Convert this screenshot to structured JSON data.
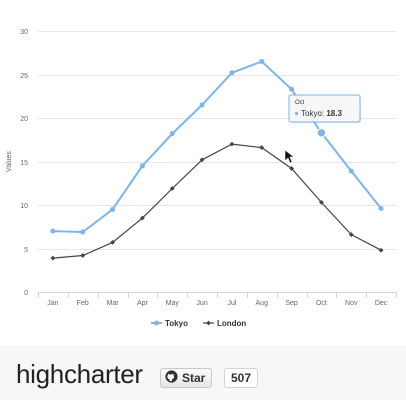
{
  "chart_data": {
    "type": "line",
    "categories": [
      "Jan",
      "Feb",
      "Mar",
      "Apr",
      "May",
      "Jun",
      "Jul",
      "Aug",
      "Sep",
      "Oct",
      "Nov",
      "Dec"
    ],
    "series": [
      {
        "name": "Tokyo",
        "color": "#7cb5ec",
        "marker": "circle",
        "values": [
          7.0,
          6.9,
          9.5,
          14.5,
          18.2,
          21.5,
          25.2,
          26.5,
          23.3,
          18.3,
          13.9,
          9.6
        ]
      },
      {
        "name": "London",
        "color": "#434348",
        "marker": "diamond",
        "values": [
          3.9,
          4.2,
          5.7,
          8.5,
          11.9,
          15.2,
          17.0,
          16.6,
          14.2,
          10.3,
          6.6,
          4.8
        ]
      }
    ],
    "ylabel": "Values",
    "ylim": [
      0,
      30
    ],
    "yticks": [
      0,
      5,
      10,
      15,
      20,
      25,
      30
    ],
    "grid": true,
    "legend": "bottom-center",
    "tooltip": {
      "header": "Oct",
      "series": "Tokyo",
      "value": "18.3",
      "point_index": 9
    }
  },
  "footer": {
    "brand": "highcharter",
    "star_label": "Star",
    "star_count": "507",
    "star_icon": "github-octocat-icon"
  }
}
